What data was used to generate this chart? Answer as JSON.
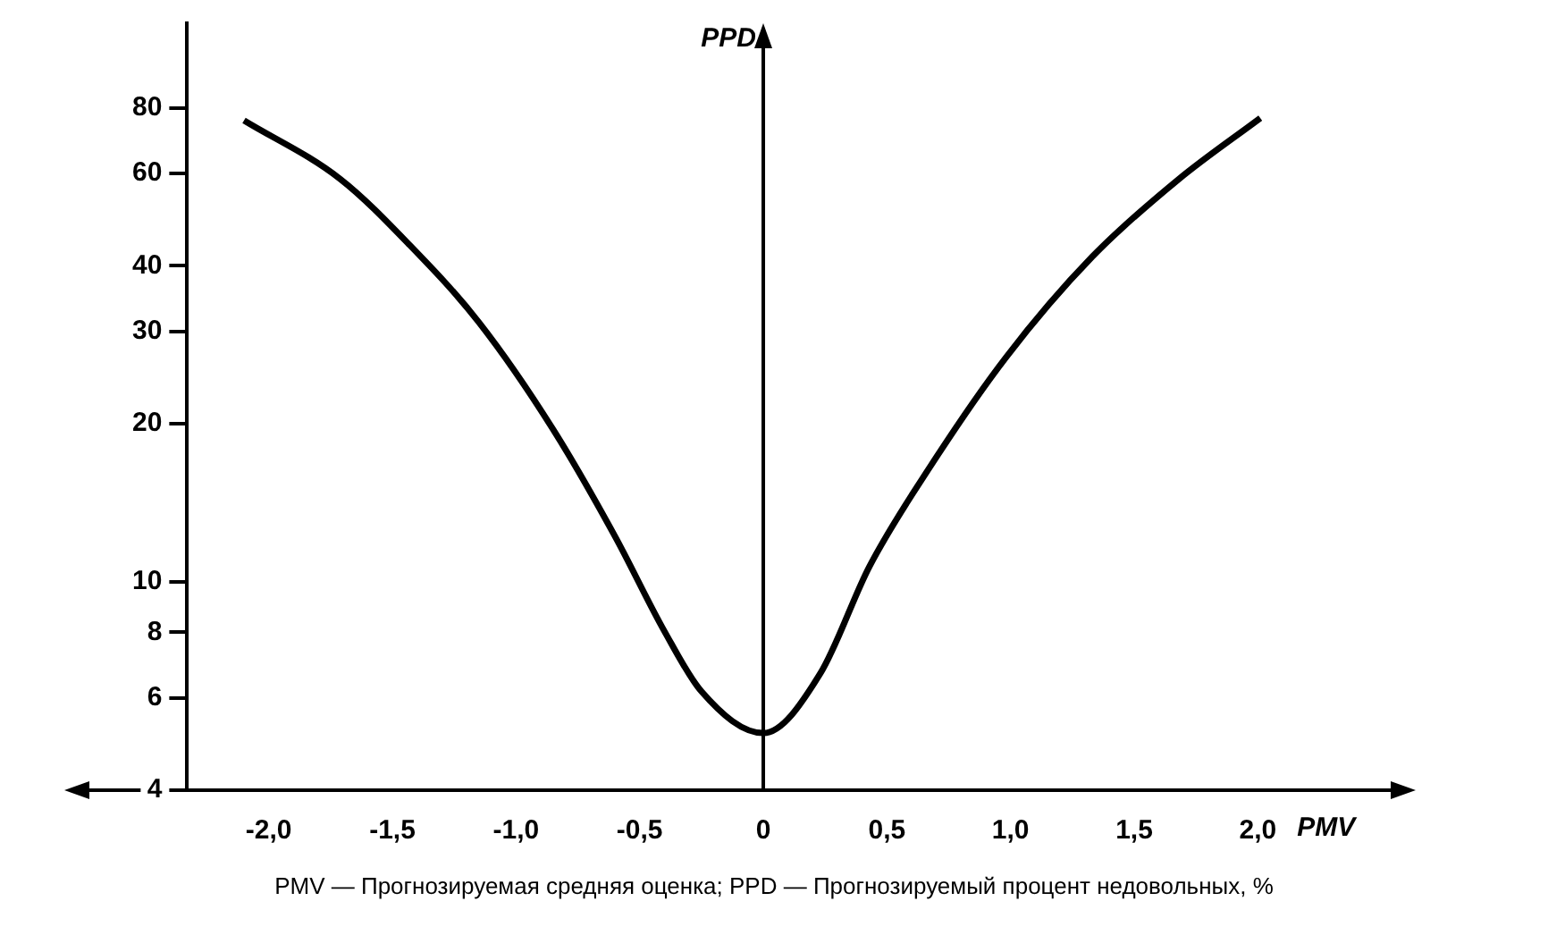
{
  "chart_data": {
    "type": "line",
    "xlabel": "PMV",
    "ylabel": "PPD",
    "annotations": [
      "PMV — Прогнозируемая средняя оценка; PPD — Прогнозируемый процент недовольных, %"
    ],
    "x": [
      -2.1,
      -1.71,
      -1.43,
      -1.15,
      -0.85,
      -0.6,
      -0.4,
      -0.25,
      0,
      0.23,
      0.43,
      0.68,
      0.98,
      1.33,
      1.68,
      2.01
    ],
    "values": [
      75.7,
      58.5,
      43.8,
      31.2,
      19.5,
      12.2,
      8.04,
      6.17,
      5.14,
      6.67,
      10.7,
      16.7,
      26.7,
      41.6,
      58.5,
      76.5
    ],
    "color": "#000000",
    "marker": "none",
    "legend": false,
    "log": "y",
    "xlim": [
      -2.33,
      2.53
    ],
    "xticks": [
      {
        "value": -2,
        "label": "-2,0"
      },
      {
        "value": -1.5,
        "label": "-1,5"
      },
      {
        "value": -1,
        "label": "-1,0"
      },
      {
        "value": -0.5,
        "label": "-0,5"
      },
      0,
      {
        "value": 0.5,
        "label": "0,5"
      },
      {
        "value": 1,
        "label": "1,0"
      },
      {
        "value": 1.5,
        "label": "1,5"
      },
      {
        "value": 2,
        "label": "2,0"
      }
    ],
    "ylim": [
      4,
      116
    ],
    "yticks": [
      4,
      6,
      8,
      10,
      20,
      30,
      40,
      60,
      80
    ]
  }
}
